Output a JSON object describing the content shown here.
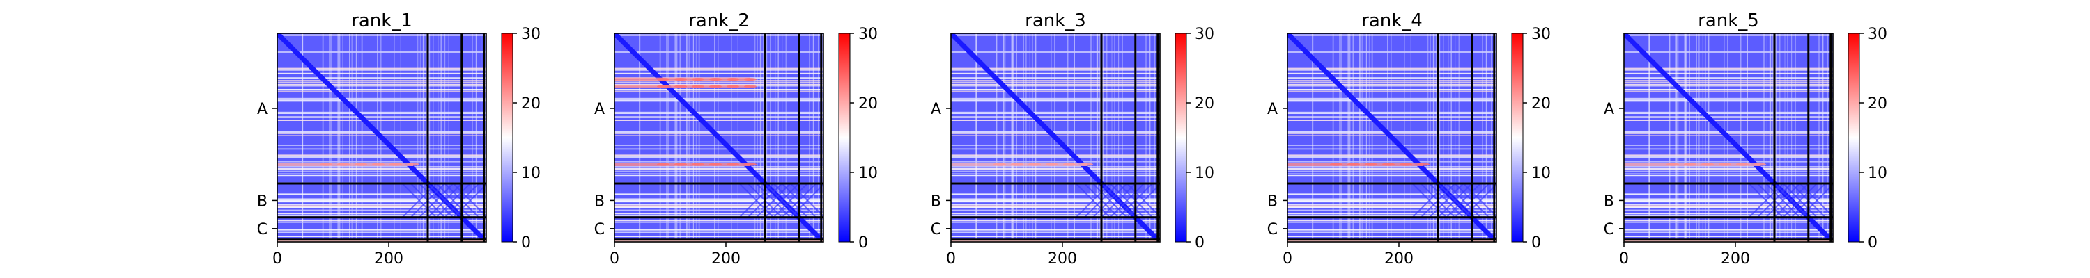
{
  "chart_data": {
    "type": "heatmap",
    "colormap": {
      "low": "#0000ff",
      "mid": "#ffffff",
      "high": "#ff0000"
    },
    "colorbar": {
      "min": 0,
      "max": 30,
      "ticks": [
        0,
        10,
        20,
        30
      ]
    },
    "x_ticks": [
      0,
      200
    ],
    "n_residues": 375,
    "chain_boundaries": [
      270,
      331,
      371
    ],
    "y_chain_labels": [
      "A",
      "B",
      "C"
    ],
    "panels": [
      {
        "title": "rank_1",
        "hot_rows": [
          235
        ],
        "hot_level": 0.66
      },
      {
        "title": "rank_2",
        "hot_rows": [
          82,
          95,
          235
        ],
        "hot_level": 0.72
      },
      {
        "title": "rank_3",
        "hot_rows": [
          235
        ],
        "hot_level": 0.64
      },
      {
        "title": "rank_4",
        "hot_rows": [
          235
        ],
        "hot_level": 0.72
      },
      {
        "title": "rank_5",
        "hot_rows": [
          235
        ],
        "hot_level": 0.66
      }
    ]
  }
}
